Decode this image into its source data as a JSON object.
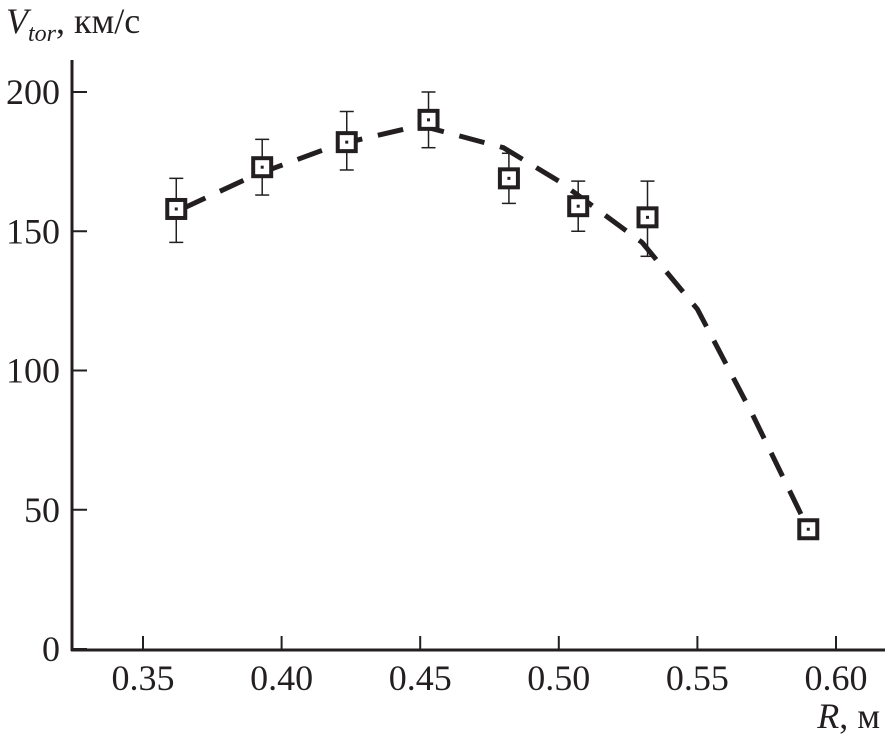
{
  "chart_data": {
    "type": "scatter",
    "title": "",
    "ylabel_main": "V",
    "ylabel_sub": "tor",
    "ylabel_unit": ", км/с",
    "xlabel_main": "R",
    "xlabel_unit": ", м",
    "xlim": [
      0.324,
      0.617
    ],
    "ylim": [
      0,
      212
    ],
    "xticks": [
      "0.35",
      "0.40",
      "0.45",
      "0.50",
      "0.55",
      "0.60"
    ],
    "yticks": [
      "0",
      "50",
      "100",
      "150",
      "200"
    ],
    "grid": false,
    "points": [
      {
        "x": 0.362,
        "y": 158,
        "err_low": 146,
        "err_high": 169
      },
      {
        "x": 0.393,
        "y": 173,
        "err_low": 163,
        "err_high": 183
      },
      {
        "x": 0.4235,
        "y": 182,
        "err_low": 172,
        "err_high": 193
      },
      {
        "x": 0.453,
        "y": 190,
        "err_low": 180,
        "err_high": 200
      },
      {
        "x": 0.482,
        "y": 169,
        "err_low": 160,
        "err_high": 178
      },
      {
        "x": 0.507,
        "y": 159,
        "err_low": 150,
        "err_high": 168
      },
      {
        "x": 0.532,
        "y": 155,
        "err_low": 141,
        "err_high": 168
      },
      {
        "x": 0.59,
        "y": 43,
        "err_low": null,
        "err_high": null
      }
    ],
    "fit_line": {
      "style": "dashed",
      "x": [
        0.364,
        0.39,
        0.42,
        0.45,
        0.48,
        0.5,
        0.53,
        0.55,
        0.57,
        0.59
      ],
      "y": [
        158,
        170,
        181,
        188,
        180,
        168,
        146,
        122,
        84,
        43
      ]
    },
    "color": "#231f20"
  }
}
